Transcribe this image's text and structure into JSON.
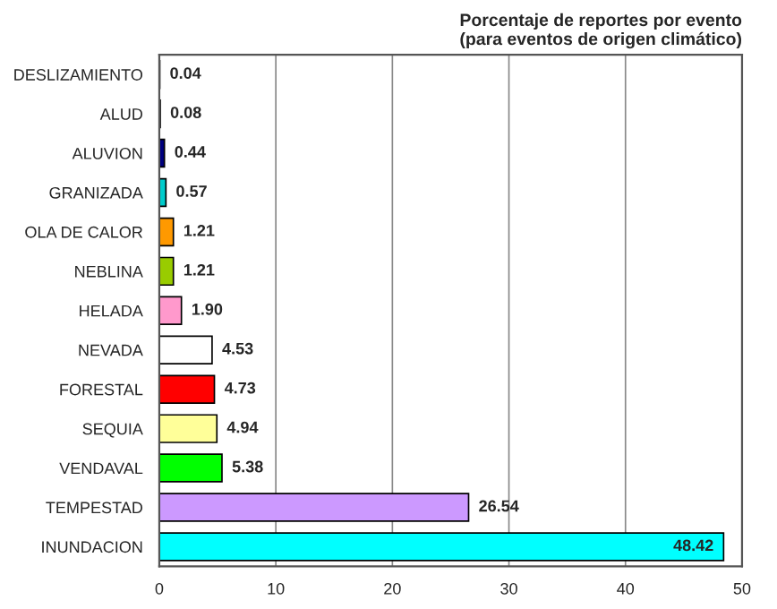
{
  "chart_data": {
    "type": "bar",
    "orientation": "horizontal",
    "title": "Porcentaje de reportes por evento\n(para eventos de origen climático)",
    "categories": [
      "DESLIZAMIENTO",
      "ALUD",
      "ALUVION",
      "GRANIZADA",
      "OLA DE CALOR",
      "NEBLINA",
      "HELADA",
      "NEVADA",
      "FORESTAL",
      "SEQUIA",
      "VENDAVAL",
      "TEMPESTAD",
      "INUNDACION"
    ],
    "values": [
      0.04,
      0.08,
      0.44,
      0.57,
      1.21,
      1.21,
      1.9,
      4.53,
      4.73,
      4.94,
      5.38,
      26.54,
      48.42
    ],
    "value_labels": [
      "0.04",
      "0.08",
      "0.44",
      "0.57",
      "1.21",
      "1.21",
      "1.90",
      "4.53",
      "4.73",
      "4.94",
      "5.38",
      "26.54",
      "48.42"
    ],
    "colors": [
      "#808080",
      "#008080",
      "#000080",
      "#00cccc",
      "#ff9900",
      "#99cc00",
      "#ff99cc",
      "#ffffff",
      "#ff0000",
      "#ffff99",
      "#00ff00",
      "#cc99ff",
      "#00ffff"
    ],
    "xlim": [
      0,
      50
    ],
    "xticks": [
      0,
      10,
      20,
      30,
      40,
      50
    ],
    "grid": "x"
  }
}
